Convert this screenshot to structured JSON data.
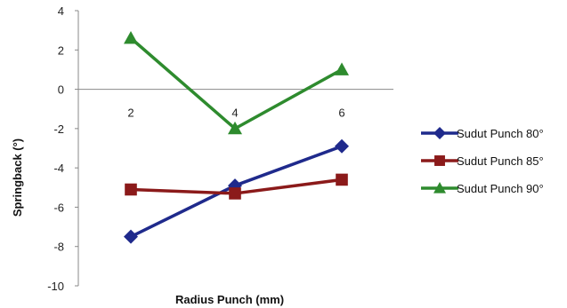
{
  "chart_data": {
    "type": "line",
    "title": "",
    "xlabel": "Radius Punch (mm)",
    "ylabel": "Springback (°)",
    "x": [
      2,
      4,
      6
    ],
    "x_tick_labels": [
      "2",
      "4",
      "6"
    ],
    "ylim": [
      -10,
      4
    ],
    "y_ticks": [
      4,
      2,
      0,
      -2,
      -4,
      -6,
      -8,
      -10
    ],
    "y_tick_labels": [
      "4",
      "2",
      "0",
      "-2",
      "-4",
      "-6",
      "-8",
      "-10"
    ],
    "grid": false,
    "legend_position": "right",
    "series": [
      {
        "name": "Sudut Punch 80°",
        "values": [
          -7.5,
          -4.9,
          -2.9
        ],
        "color": "#1f2a8c",
        "marker": "diamond"
      },
      {
        "name": "Sudut Punch 85°",
        "values": [
          -5.1,
          -5.3,
          -4.6
        ],
        "color": "#8b1a1a",
        "marker": "square"
      },
      {
        "name": "Sudut Punch 90°",
        "values": [
          2.6,
          -2.0,
          1.0
        ],
        "color": "#2e8b2e",
        "marker": "triangle"
      }
    ]
  }
}
